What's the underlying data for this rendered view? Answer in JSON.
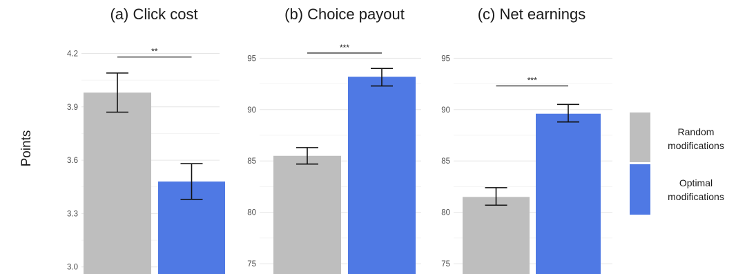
{
  "chart_data": {
    "type": "bar",
    "ylabel": "Points",
    "legend": {
      "position": "right",
      "entries": [
        {
          "line1": "Random",
          "line2": "modifications",
          "color": "#bebebe"
        },
        {
          "line1": "Optimal",
          "line2": "modifications",
          "color": "#4f79e4"
        }
      ]
    },
    "panels": [
      {
        "title": "(a) Click cost",
        "ylim": [
          2.96,
          4.26
        ],
        "yticks": [
          3.0,
          3.3,
          3.6,
          3.9,
          4.2
        ],
        "tick_labels": [
          "3.0",
          "3.3",
          "3.6",
          "3.9",
          "4.2"
        ],
        "minor_gridlines": [
          3.15,
          3.45,
          3.75,
          4.05
        ],
        "series": [
          {
            "name": "Random modifications",
            "value": 3.98,
            "err_low": 3.87,
            "err_high": 4.09
          },
          {
            "name": "Optimal modifications",
            "value": 3.48,
            "err_low": 3.38,
            "err_high": 3.58
          }
        ],
        "significance": "**",
        "sig_y": 4.18
      },
      {
        "title": "(b) Choice payout",
        "ylim": [
          74,
          96.5
        ],
        "yticks": [
          75,
          80,
          85,
          90,
          95
        ],
        "tick_labels": [
          "75",
          "80",
          "85",
          "90",
          "95"
        ],
        "minor_gridlines": [
          77.5,
          82.5,
          87.5,
          92.5
        ],
        "series": [
          {
            "name": "Random modifications",
            "value": 85.5,
            "err_low": 84.7,
            "err_high": 86.3
          },
          {
            "name": "Optimal modifications",
            "value": 93.2,
            "err_low": 92.3,
            "err_high": 94.0
          }
        ],
        "significance": "***",
        "sig_y": 95.5
      },
      {
        "title": "(c) Net earnings",
        "ylim": [
          74,
          96.5
        ],
        "yticks": [
          75,
          80,
          85,
          90,
          95
        ],
        "tick_labels": [
          "75",
          "80",
          "85",
          "90",
          "95"
        ],
        "minor_gridlines": [
          77.5,
          82.5,
          87.5,
          92.5
        ],
        "series": [
          {
            "name": "Random modifications",
            "value": 81.5,
            "err_low": 80.7,
            "err_high": 82.4
          },
          {
            "name": "Optimal modifications",
            "value": 89.6,
            "err_low": 88.8,
            "err_high": 90.5
          }
        ],
        "significance": "***",
        "sig_y": 92.3
      }
    ]
  }
}
